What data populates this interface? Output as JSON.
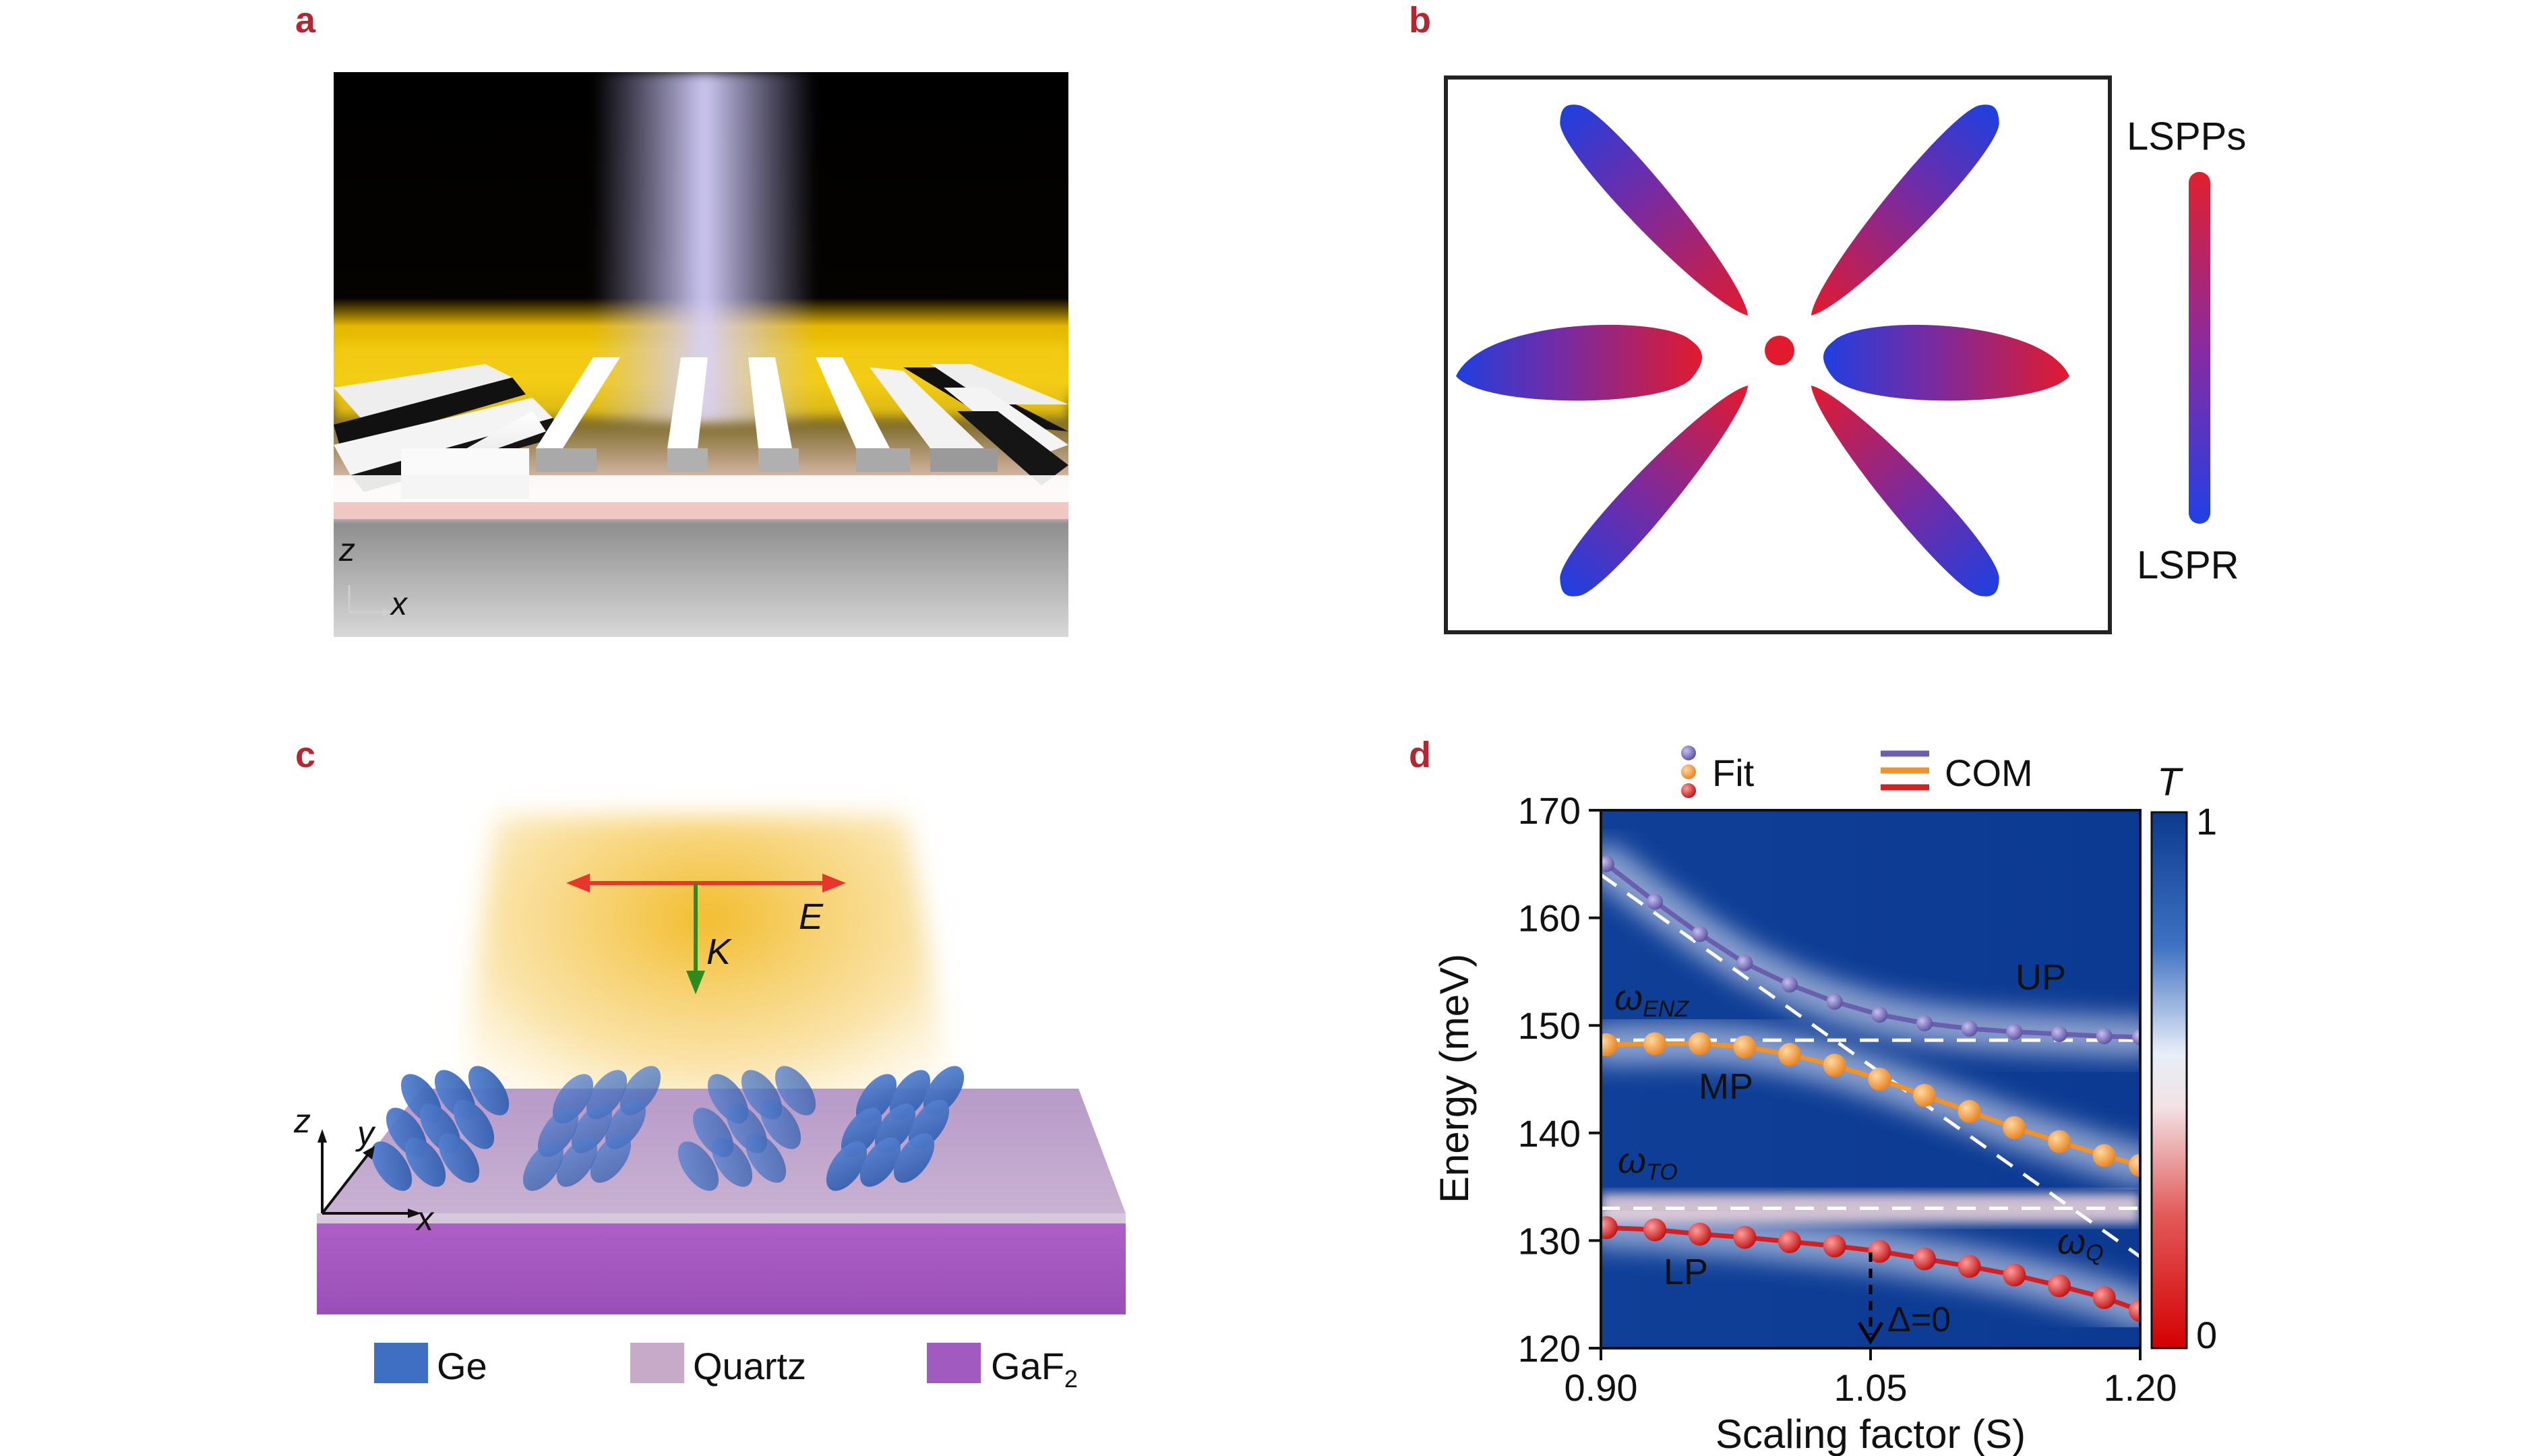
{
  "panels": {
    "a": {
      "letter": "a",
      "axis_z": "z",
      "axis_x": "x"
    },
    "b": {
      "letter": "b",
      "scale_top": "LSPPs",
      "scale_bottom": "LSPR"
    },
    "c": {
      "letter": "c",
      "field_label": "E",
      "k_label": "K",
      "axis_z": "z",
      "axis_y": "y",
      "axis_x": "x",
      "legend": [
        {
          "label": "Ge",
          "color": "#3f6fc3"
        },
        {
          "label": "Quartz",
          "color": "#c6aac8"
        },
        {
          "label": "GaF",
          "sub": "2",
          "color": "#a15ac0"
        }
      ]
    },
    "d": {
      "letter": "d",
      "legend_fit": "Fit",
      "legend_com": "COM",
      "mode_labels": {
        "up": "UP",
        "mp": "MP",
        "lp": "LP"
      },
      "line_labels": {
        "enz_base": "ω",
        "enz_sub": "ENZ",
        "to_base": "ω",
        "to_sub": "TO",
        "q_base": "ω",
        "q_sub": "Q"
      },
      "delta_label": "Δ=0",
      "colorbar": {
        "title": "T",
        "max_label": "1",
        "min_label": "0"
      }
    }
  },
  "chart_data": {
    "type": "line",
    "xlabel": "Scaling factor (S)",
    "ylabel": "Energy (meV)",
    "xlim": [
      0.9,
      1.2
    ],
    "ylim": [
      120,
      170
    ],
    "xticks": [
      "0.90",
      "1.05",
      "1.20"
    ],
    "yticks": [
      "120",
      "130",
      "140",
      "150",
      "160",
      "170"
    ],
    "reference_lines": {
      "omega_ENZ": 149,
      "omega_TO": 133
    },
    "series": [
      {
        "name": "UP",
        "color": "#6a5fae",
        "x": [
          0.903,
          0.93,
          0.955,
          0.98,
          1.005,
          1.03,
          1.055,
          1.08,
          1.105,
          1.13,
          1.155,
          1.18,
          1.2
        ],
        "y": [
          165.0,
          161.5,
          158.5,
          155.8,
          153.8,
          152.2,
          151.0,
          150.2,
          149.7,
          149.4,
          149.2,
          149.0,
          148.9
        ]
      },
      {
        "name": "MP",
        "color": "#f0932b",
        "x": [
          0.903,
          0.93,
          0.955,
          0.98,
          1.005,
          1.03,
          1.055,
          1.08,
          1.105,
          1.13,
          1.155,
          1.18,
          1.2
        ],
        "y": [
          148.2,
          148.3,
          148.3,
          148.0,
          147.3,
          146.3,
          145.0,
          143.5,
          142.0,
          140.5,
          139.2,
          137.9,
          137.0
        ]
      },
      {
        "name": "LP",
        "color": "#d42020",
        "x": [
          0.903,
          0.93,
          0.955,
          0.98,
          1.005,
          1.03,
          1.055,
          1.08,
          1.105,
          1.13,
          1.155,
          1.18,
          1.2
        ],
        "y": [
          131.2,
          131.0,
          130.6,
          130.3,
          129.9,
          129.5,
          129.0,
          128.3,
          127.6,
          126.8,
          125.8,
          124.7,
          123.5
        ]
      }
    ]
  }
}
